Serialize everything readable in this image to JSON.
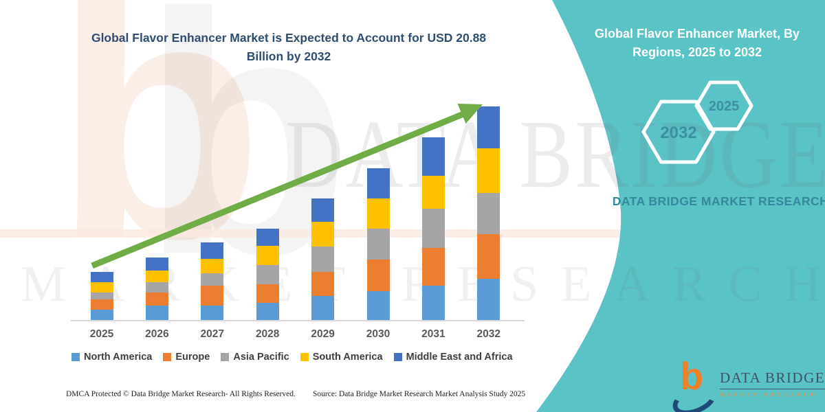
{
  "left_title": "Global Flavor Enhancer Market is Expected to Account for USD 20.88 Billion by 2032",
  "panel": {
    "title": "Global Flavor Enhancer Market, By Regions, 2025 to 2032",
    "hexagon_big_label": "2032",
    "hexagon_small_label": "2025",
    "brand_text": "DATA BRIDGE MARKET RESEARCH",
    "teal_color": "#5ac3c6",
    "hex_label_color": "#3d8fa3"
  },
  "chart_data": {
    "type": "bar",
    "stacked": true,
    "unit": "USD Billion",
    "title": "Global Flavor Enhancer Market is Expected to Account for USD 20.88 Billion by 2032",
    "categories": [
      "2025",
      "2026",
      "2027",
      "2028",
      "2029",
      "2030",
      "2031",
      "2032"
    ],
    "series": [
      {
        "name": "North America",
        "color": "#5B9BD5",
        "values": [
          1.01,
          1.41,
          1.41,
          1.68,
          2.35,
          2.82,
          3.36,
          4.03
        ]
      },
      {
        "name": "Europe",
        "color": "#ED7D31",
        "values": [
          1.01,
          1.28,
          1.95,
          1.81,
          2.35,
          3.09,
          3.69,
          4.36
        ]
      },
      {
        "name": "Asia Pacific",
        "color": "#A5A5A5",
        "values": [
          0.67,
          1.01,
          1.21,
          1.88,
          2.48,
          3.02,
          3.83,
          4.03
        ]
      },
      {
        "name": "South America",
        "color": "#FFC000",
        "values": [
          1.01,
          1.14,
          1.41,
          1.88,
          2.42,
          2.95,
          3.22,
          4.36
        ]
      },
      {
        "name": "Middle East and Africa",
        "color": "#4472C4",
        "values": [
          1.01,
          1.28,
          1.61,
          1.68,
          2.28,
          2.95,
          3.76,
          4.1
        ]
      }
    ],
    "totals": [
      4.71,
      6.12,
      7.59,
      8.93,
      11.88,
      14.83,
      17.86,
      20.88
    ],
    "highlight_total_2032": 20.88,
    "trend_arrow": true,
    "trend_arrow_color": "#70AD47",
    "grid": false,
    "legend_position": "bottom",
    "ylim": [
      0,
      22
    ]
  },
  "watermark": {
    "big_text": "DATA BRIDGE",
    "sub_text": "MARKET RESEARCH",
    "logo_glyph": "b"
  },
  "footer": {
    "dmca": "DMCA Protected © Data Bridge Market Research-  All Rights Reserved.",
    "source": "Source: Data Bridge Market Research  Market Analysis Study 2025"
  },
  "logo": {
    "glyph": "b",
    "brand": "DATA BRIDGE",
    "sub": "MARKET RESEARCH"
  }
}
